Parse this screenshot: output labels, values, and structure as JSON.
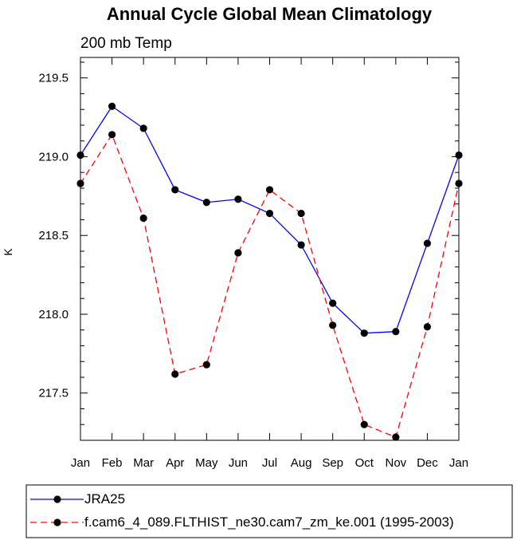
{
  "chart_data": {
    "type": "line",
    "title": "Annual Cycle Global Mean Climatology",
    "subtitle": "200 mb Temp",
    "xlabel": "",
    "ylabel": "K",
    "categories": [
      "Jan",
      "Feb",
      "Mar",
      "Apr",
      "May",
      "Jun",
      "Jul",
      "Aug",
      "Sep",
      "Oct",
      "Nov",
      "Dec",
      "Jan"
    ],
    "ylim": [
      217.2,
      219.63
    ],
    "yticks": [
      "217.5",
      "218.0",
      "218.5",
      "219.0",
      "219.5"
    ],
    "ytick_values": [
      217.5,
      218.0,
      218.5,
      219.0,
      219.5
    ],
    "series": [
      {
        "name": "JRA25",
        "color": "#0000ff",
        "dash": "solid",
        "values": [
          219.01,
          219.32,
          219.18,
          218.79,
          218.71,
          218.73,
          218.64,
          218.44,
          218.07,
          217.88,
          217.89,
          218.45,
          219.01
        ]
      },
      {
        "name": "f.cam6_4_089.FLTHIST_ne30.cam7_zm_ke.001 (1995-2003)",
        "color": "#ff0000",
        "dash": "dashed",
        "values": [
          218.83,
          219.14,
          218.61,
          217.62,
          217.68,
          218.39,
          218.79,
          218.64,
          217.93,
          217.3,
          217.22,
          217.92,
          218.83
        ]
      }
    ],
    "legend_position": "bottom"
  }
}
